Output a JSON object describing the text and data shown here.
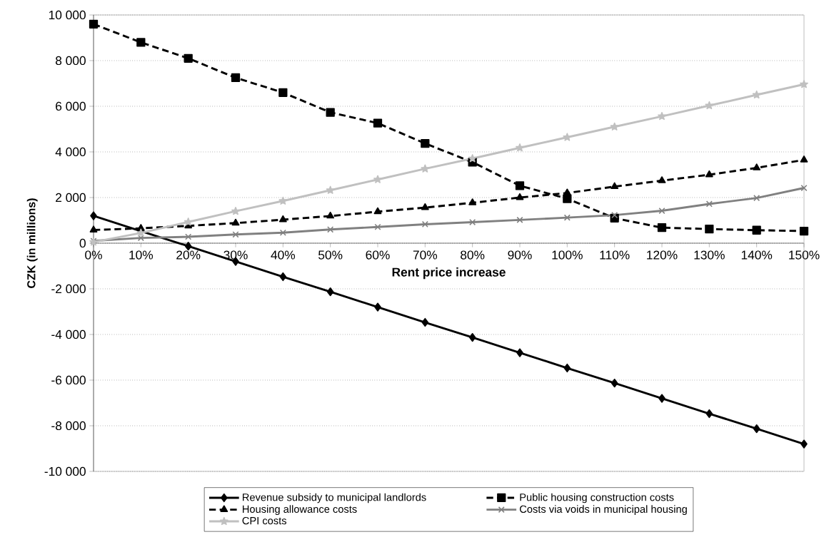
{
  "chart_data": {
    "type": "line",
    "xlabel": "Rent price increase",
    "ylabel": "CZK (in millions)",
    "categories": [
      "0%",
      "10%",
      "20%",
      "30%",
      "40%",
      "50%",
      "60%",
      "70%",
      "80%",
      "90%",
      "100%",
      "110%",
      "120%",
      "130%",
      "140%",
      "150%"
    ],
    "ylim": [
      -10000,
      10000
    ],
    "yticks": [
      {
        "value": -10000,
        "label": "-10 000"
      },
      {
        "value": -8000,
        "label": "-8 000"
      },
      {
        "value": -6000,
        "label": "-6 000"
      },
      {
        "value": -4000,
        "label": "-4 000"
      },
      {
        "value": -2000,
        "label": "-2 000"
      },
      0,
      {
        "value": 2000,
        "label": "2 000"
      },
      {
        "value": 4000,
        "label": "4 000"
      },
      {
        "value": 6000,
        "label": "6 000"
      },
      {
        "value": 8000,
        "label": "8 000"
      },
      {
        "value": 10000,
        "label": "10 000"
      }
    ],
    "grid": "y",
    "legend": "bottom",
    "series": [
      {
        "name": "Revenue subsidy to municipal landlords",
        "color": "#000000",
        "marker": "diamond",
        "line_style": "solid",
        "values": [
          1200,
          530,
          -130,
          -800,
          -1470,
          -2130,
          -2800,
          -3470,
          -4130,
          -4800,
          -5470,
          -6130,
          -6800,
          -7470,
          -8130,
          -8800
        ]
      },
      {
        "name": "Public housing construction costs",
        "color": "#000000",
        "marker": "square",
        "line_style": "dashed",
        "values": [
          9600,
          8800,
          8100,
          7250,
          6600,
          5730,
          5260,
          4370,
          3550,
          2520,
          1950,
          1100,
          680,
          620,
          570,
          530
        ]
      },
      {
        "name": "Housing allowance costs",
        "color": "#000000",
        "marker": "triangle",
        "line_style": "dashed",
        "values": [
          580,
          650,
          760,
          880,
          1030,
          1190,
          1380,
          1560,
          1770,
          2000,
          2200,
          2480,
          2740,
          3000,
          3300,
          3650
        ]
      },
      {
        "name": "Costs via voids in municipal housing",
        "color": "#808080",
        "marker": "cross",
        "line_style": "solid",
        "values": [
          100,
          230,
          280,
          380,
          460,
          600,
          710,
          830,
          920,
          1020,
          1120,
          1230,
          1420,
          1720,
          1980,
          2420
        ]
      },
      {
        "name": "CPI costs",
        "color": "#c0c0c0",
        "marker": "star",
        "line_style": "solid",
        "values": [
          50,
          450,
          930,
          1400,
          1850,
          2320,
          2790,
          3260,
          3710,
          4180,
          4640,
          5100,
          5560,
          6030,
          6500,
          6960
        ]
      }
    ]
  }
}
